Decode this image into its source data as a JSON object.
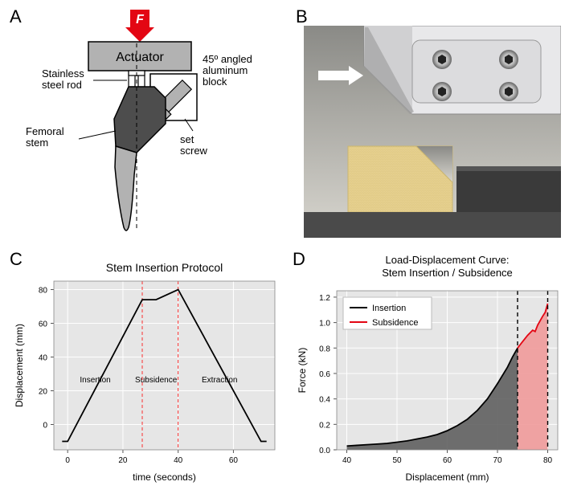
{
  "panelA": {
    "label": "A",
    "force_label": "F",
    "actuator_label": "Actuator",
    "block_label": "45º angled\naluminum\nblock",
    "rod_label": "Stainless\nsteel rod",
    "stem_label": "Femoral\nstem",
    "screw_label": "set\nscrew",
    "colors": {
      "force_arrow": "#e30613",
      "force_text": "#ffffff",
      "actuator_fill": "#b2b2b2",
      "block_fill": "#ffffff",
      "stem_upper": "#4d4d4d",
      "stem_lower": "#b2b2b2",
      "rod": "#ffffff",
      "screw": "#b2b2b2",
      "outline": "#000000",
      "text": "#000000"
    }
  },
  "panelB": {
    "label": "B",
    "arrow_color": "#ffffff",
    "colors": {
      "foam": "#e6d08f",
      "bracket_light": "#e8e8ea",
      "bracket_dark": "#4a4a4a",
      "background_grad_top": "#8a8a86",
      "background_grad_bottom": "#d8d6cf",
      "bolt": "#c8c8c8",
      "base": "#3a3a3a"
    }
  },
  "panelC": {
    "label": "C",
    "title": "Stem Insertion Protocol",
    "xlabel": "time (seconds)",
    "ylabel": "Displacement (mm)",
    "xlim": [
      -5,
      75
    ],
    "ylim": [
      -15,
      85
    ],
    "xticks": [
      0,
      20,
      40,
      60
    ],
    "yticks": [
      0,
      20,
      40,
      60,
      80
    ],
    "region_labels": [
      "Insertion",
      "Subsidence",
      "Extraction"
    ],
    "region_x": [
      10,
      32,
      55
    ],
    "vline_x": [
      27,
      40
    ],
    "line_points": [
      [
        -2,
        -10
      ],
      [
        0,
        -10
      ],
      [
        27,
        74
      ],
      [
        32,
        74
      ],
      [
        40,
        80
      ],
      [
        70,
        -10
      ],
      [
        72,
        -10
      ]
    ],
    "colors": {
      "bg": "#e6e6e6",
      "grid": "#ffffff",
      "line": "#000000",
      "vline": "#ff0000",
      "text": "#000000"
    },
    "fontsize": {
      "title": 14,
      "label": 12,
      "tick": 10,
      "region": 10
    }
  },
  "panelD": {
    "label": "D",
    "title": "Load-Displacement Curve:\nStem Insertion / Subsidence",
    "xlabel": "Displacement (mm)",
    "ylabel": "Force (kN)",
    "xlim": [
      38,
      82
    ],
    "ylim": [
      0,
      1.25
    ],
    "xticks": [
      40,
      50,
      60,
      70,
      80
    ],
    "yticks": [
      0.0,
      0.2,
      0.4,
      0.6,
      0.8,
      1.0,
      1.2
    ],
    "legend": [
      "Insertion",
      "Subsidence"
    ],
    "legend_colors": [
      "#000000",
      "#e30613"
    ],
    "vline_x": [
      74,
      80
    ],
    "insertion_curve": [
      [
        40,
        0.03
      ],
      [
        42,
        0.035
      ],
      [
        44,
        0.04
      ],
      [
        46,
        0.045
      ],
      [
        48,
        0.05
      ],
      [
        50,
        0.06
      ],
      [
        52,
        0.07
      ],
      [
        54,
        0.085
      ],
      [
        56,
        0.1
      ],
      [
        58,
        0.12
      ],
      [
        60,
        0.15
      ],
      [
        62,
        0.19
      ],
      [
        64,
        0.24
      ],
      [
        66,
        0.31
      ],
      [
        68,
        0.4
      ],
      [
        70,
        0.52
      ],
      [
        72,
        0.65
      ],
      [
        73,
        0.73
      ],
      [
        74,
        0.8
      ]
    ],
    "subsidence_curve": [
      [
        74,
        0.8
      ],
      [
        75,
        0.85
      ],
      [
        76,
        0.9
      ],
      [
        77,
        0.94
      ],
      [
        77.5,
        0.93
      ],
      [
        78,
        0.98
      ],
      [
        79,
        1.05
      ],
      [
        79.5,
        1.08
      ],
      [
        80,
        1.15
      ]
    ],
    "colors": {
      "bg": "#e6e6e6",
      "grid": "#ffffff",
      "insertion_fill": "#575757",
      "insertion_line": "#000000",
      "subsidence_fill": "#ef9a9a",
      "subsidence_line": "#e30613",
      "vline": "#000000",
      "text": "#000000",
      "legend_bg": "#ffffff"
    },
    "fontsize": {
      "title": 13,
      "label": 12,
      "tick": 10,
      "legend": 11
    }
  }
}
